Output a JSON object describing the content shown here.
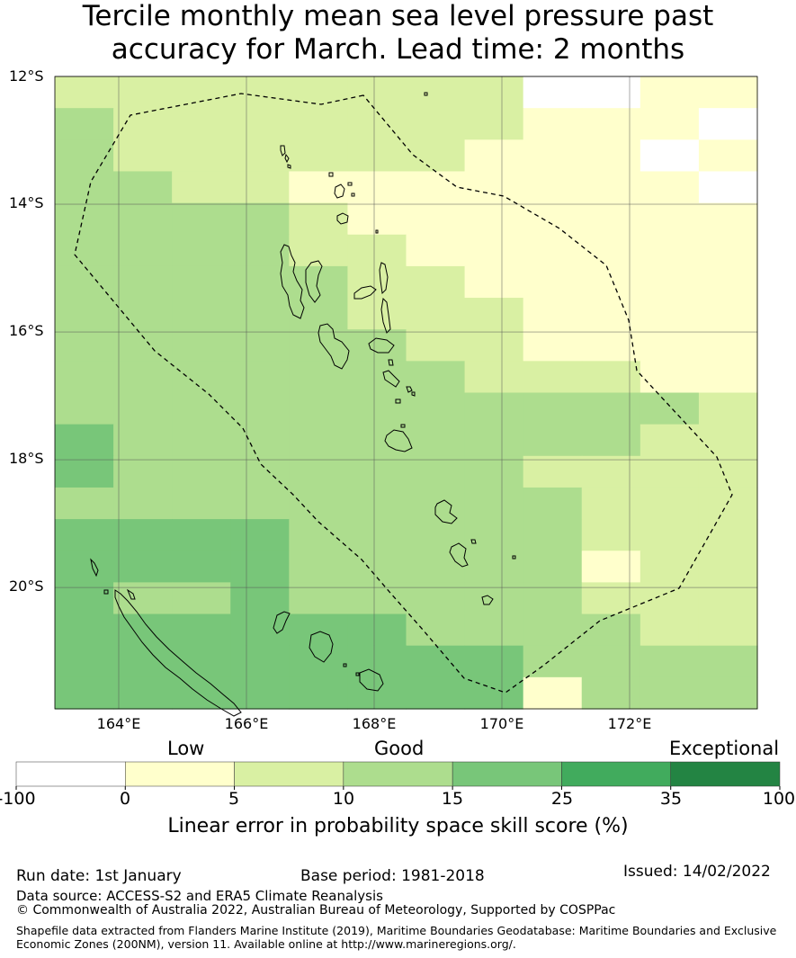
{
  "title_line1": "Tercile monthly mean sea level pressure past",
  "title_line2": "accuracy for March. Lead time: 2 months",
  "map": {
    "lat_range": [
      -21.9,
      -12.0
    ],
    "lon_range": [
      163,
      174
    ],
    "lat_ticks": [
      "12°S",
      "14°S",
      "16°S",
      "18°S",
      "20°S"
    ],
    "lon_ticks": [
      "164°E",
      "166°E",
      "168°E",
      "170°E",
      "172°E"
    ],
    "grid": true,
    "colors": [
      "#ffffff",
      "#ffffcc",
      "#d9f0a3",
      "#addd8e",
      "#78c679",
      "#41ab5d",
      "#238443"
    ],
    "skill_grid_rows_north_to_south": [
      "222222220011",
      "322222221110",
      "322222211101",
      "332211111110",
      "333321111111",
      "333322111111",
      "333332211111",
      "333332221111",
      "333333221111",
      "333333322211",
      "333333333332",
      "433333333322",
      "433333332222",
      "333333333222",
      "444433333222",
      "444433333122",
      "433433333222",
      "444444333322",
      "444444443333",
      "444444441333"
    ],
    "boundary_line_style": "dashed",
    "islands": "Vanuatu and New Caledonia coastlines"
  },
  "colorbar": {
    "categories": [
      "Low",
      "Good",
      "Exceptional"
    ],
    "ticks": [
      "-100",
      "0",
      "5",
      "10",
      "15",
      "25",
      "35",
      "100"
    ],
    "title": "Linear error in probability space skill score (%)"
  },
  "footer": {
    "run_date": "Run date: 1st January",
    "base_period": "Base period: 1981-2018",
    "issued": "Issued: 14/02/2022",
    "data_source": "Data source: ACCESS-S2 and ERA5 Climate Reanalysis",
    "copyright": "© Commonwealth of Australia 2022, Australian Bureau of Meteorology, Supported by COSPPac",
    "shapefile_line1": "Shapefile data extracted from Flanders Marine Institute (2019), Maritime Boundaries Geodatabase: Maritime Boundaries and Exclusive",
    "shapefile_line2": "Economic Zones (200NM), version 11. Available online at http://www.marineregions.org/."
  }
}
